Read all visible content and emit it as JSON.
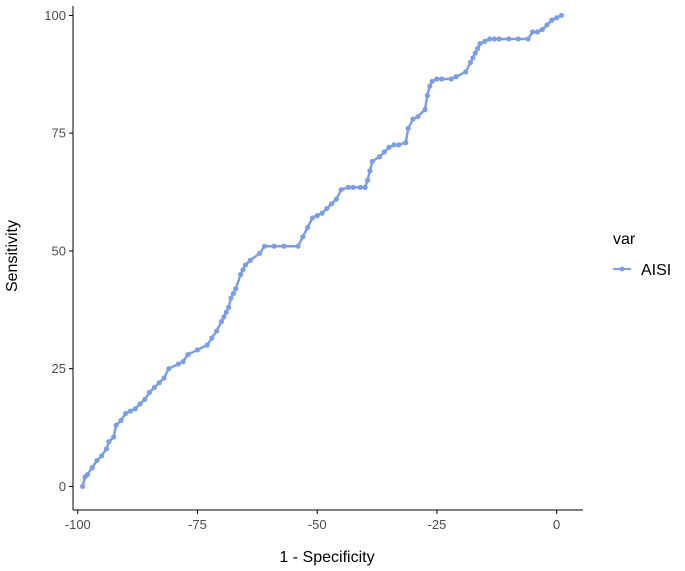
{
  "chart_data": {
    "type": "line",
    "title": "",
    "xlabel": "1 - Specificity",
    "ylabel": "Sensitivity",
    "xlim": [
      -101,
      5.5
    ],
    "ylim": [
      -5,
      102
    ],
    "x_ticks": [
      -100,
      -75,
      -50,
      -25,
      0
    ],
    "x_tick_labels": [
      "-100",
      "-75",
      "-50",
      "-25",
      "0"
    ],
    "y_ticks": [
      0,
      25,
      50,
      75,
      100
    ],
    "y_tick_labels": [
      "0",
      "25",
      "50",
      "75",
      "100"
    ],
    "grid": false,
    "legend": {
      "title": "var",
      "position": "right"
    },
    "series": [
      {
        "name": "AISI",
        "color": "#7b9ee6",
        "x": [
          -99,
          -98.5,
          -98,
          -97,
          -96,
          -95,
          -94,
          -93.5,
          -92.5,
          -92,
          -91,
          -90,
          -89,
          -88,
          -87,
          -86,
          -85,
          -84,
          -83,
          -82,
          -81,
          -79,
          -78,
          -77,
          -75,
          -73,
          -72,
          -71,
          -70,
          -69.5,
          -69,
          -68.5,
          -68,
          -67.5,
          -67,
          -66,
          -65.5,
          -65,
          -64,
          -62,
          -61,
          -59,
          -57,
          -54,
          -53,
          -52,
          -51,
          -50,
          -49,
          -48,
          -47,
          -46,
          -45,
          -43.5,
          -42.5,
          -41,
          -40,
          -39.5,
          -39,
          -38.5,
          -37,
          -36,
          -35,
          -34,
          -33,
          -31.5,
          -31,
          -30,
          -29,
          -27.5,
          -27,
          -26.5,
          -26,
          -25,
          -24,
          -22,
          -21,
          -19,
          -18,
          -17.5,
          -17,
          -16.5,
          -16,
          -15,
          -14,
          -13,
          -12,
          -10,
          -8,
          -6,
          -5,
          -4,
          -3,
          -2,
          -1,
          0,
          1
        ],
        "y": [
          0,
          2,
          2.5,
          4,
          5.5,
          6.5,
          8,
          9.5,
          10.5,
          13,
          14,
          15.5,
          16,
          16.5,
          17.5,
          18.5,
          20,
          21,
          22,
          23,
          25,
          26,
          26.5,
          28,
          29,
          30,
          31.5,
          33,
          35,
          36,
          37,
          38,
          40,
          41,
          42,
          45,
          46,
          47,
          48,
          49.5,
          51,
          51,
          51,
          51,
          53,
          55,
          57,
          57.5,
          58,
          59,
          60,
          61,
          63,
          63.5,
          63.5,
          63.5,
          63.5,
          65,
          67,
          69,
          70,
          71,
          72,
          72.5,
          72.5,
          73,
          76,
          78,
          78.5,
          80,
          83,
          85,
          86,
          86.5,
          86.5,
          86.5,
          87,
          88,
          90,
          91,
          92,
          93,
          94,
          94.5,
          95,
          95,
          95,
          95,
          95,
          95,
          96.5,
          96.5,
          97,
          98,
          99,
          99.5,
          100
        ]
      }
    ]
  }
}
